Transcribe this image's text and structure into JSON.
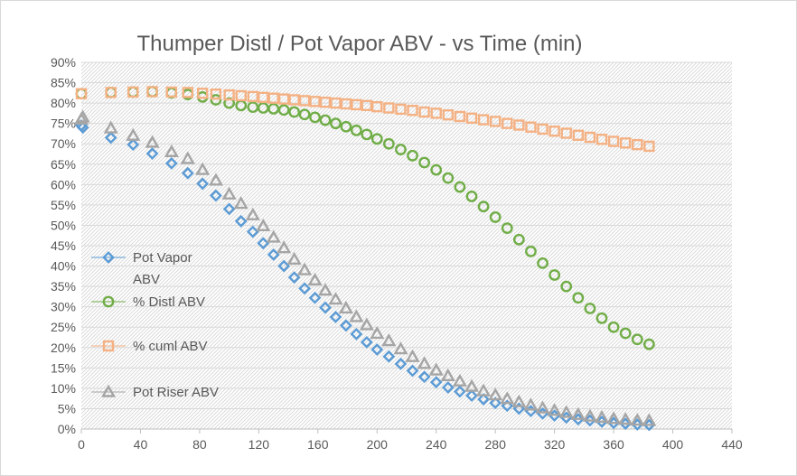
{
  "chart_data": {
    "type": "scatter",
    "title": "Thumper Distl / Pot Vapor ABV - vs Time (min)",
    "xlabel": "",
    "ylabel": "",
    "xlim": [
      0,
      440
    ],
    "ylim": [
      0,
      90
    ],
    "x_ticks": [
      "0",
      "40",
      "80",
      "120",
      "160",
      "200",
      "240",
      "280",
      "320",
      "360",
      "400",
      "440"
    ],
    "y_ticks": [
      "0%",
      "5%",
      "10%",
      "15%",
      "20%",
      "25%",
      "30%",
      "35%",
      "40%",
      "45%",
      "50%",
      "55%",
      "60%",
      "65%",
      "70%",
      "75%",
      "80%",
      "85%",
      "90%"
    ],
    "grid": "horizontal",
    "plot_area_pattern": "diagonal-hatch",
    "legend_position": "left-inside",
    "x": [
      0,
      1,
      20,
      35,
      48,
      61,
      72,
      82,
      91,
      100,
      108,
      116,
      123,
      130,
      137,
      144,
      151,
      158,
      165,
      172,
      179,
      186,
      193,
      200,
      208,
      216,
      224,
      232,
      240,
      248,
      256,
      264,
      272,
      280,
      288,
      296,
      304,
      312,
      320,
      328,
      336,
      344,
      352,
      360,
      368,
      376,
      384
    ],
    "series": [
      {
        "name": "Pot Vapor ABV",
        "color": "#5B9BD5",
        "marker": "diamond",
        "values": [
          74.5,
          74,
          71.5,
          69.8,
          67.6,
          65.2,
          62.8,
          60.2,
          57.3,
          54,
          51,
          48.4,
          45.6,
          42.8,
          40,
          37.2,
          34.5,
          32.2,
          29.8,
          27.5,
          25.4,
          23.3,
          21.3,
          19.5,
          17.8,
          16,
          14.3,
          12.8,
          11.5,
          10.2,
          9.2,
          8.2,
          7.3,
          6.4,
          5.7,
          5,
          4.4,
          3.8,
          3.3,
          2.8,
          2.4,
          2.1,
          1.8,
          1.5,
          1.3,
          1.1,
          1.0
        ]
      },
      {
        "name": "% Distl ABV",
        "color": "#70AD47",
        "marker": "circle",
        "x": [
          0,
          20,
          35,
          48,
          61,
          72,
          82,
          91,
          100,
          108,
          116,
          123,
          130,
          137,
          144,
          151,
          158,
          165,
          172,
          179,
          186,
          193,
          200,
          208,
          216,
          224,
          232,
          240,
          248,
          256,
          264,
          272,
          280,
          288,
          296,
          304,
          312,
          320,
          328,
          336,
          344,
          352,
          360,
          368,
          376,
          384
        ],
        "values": [
          82.3,
          82.6,
          82.7,
          82.8,
          82.5,
          82.1,
          81.5,
          80.8,
          80,
          79.4,
          79,
          78.8,
          78.6,
          78.3,
          77.8,
          77.2,
          76.5,
          75.8,
          75,
          74.2,
          73.3,
          72.3,
          71.2,
          70,
          68.6,
          67.1,
          65.4,
          63.6,
          61.6,
          59.4,
          57.1,
          54.6,
          52,
          49.3,
          46.5,
          43.6,
          40.7,
          37.8,
          35,
          32.2,
          29.6,
          27.2,
          25,
          23.5,
          22,
          20.8
        ]
      },
      {
        "name": "% cuml ABV",
        "color": "#F4B183",
        "marker": "square",
        "x": [
          0,
          20,
          35,
          48,
          61,
          72,
          82,
          91,
          100,
          108,
          116,
          123,
          130,
          137,
          144,
          151,
          158,
          165,
          172,
          179,
          186,
          193,
          200,
          208,
          216,
          224,
          232,
          240,
          248,
          256,
          264,
          272,
          280,
          288,
          296,
          304,
          312,
          320,
          328,
          336,
          344,
          352,
          360,
          368,
          376,
          384
        ],
        "values": [
          82.3,
          82.6,
          82.7,
          82.8,
          82.7,
          82.6,
          82.4,
          82.2,
          82,
          81.8,
          81.6,
          81.4,
          81.2,
          81,
          80.8,
          80.6,
          80.4,
          80.2,
          80,
          79.8,
          79.6,
          79.4,
          79.1,
          78.8,
          78.5,
          78.2,
          77.8,
          77.5,
          77.1,
          76.7,
          76.3,
          75.9,
          75.5,
          75,
          74.6,
          74.1,
          73.6,
          73.1,
          72.6,
          72.1,
          71.6,
          71.1,
          70.6,
          70.2,
          69.8,
          69.4
        ]
      },
      {
        "name": "Pot Riser ABV",
        "color": "#A5A5A5",
        "marker": "triangle",
        "x": [
          0,
          1,
          20,
          35,
          48,
          61,
          72,
          82,
          91,
          100,
          108,
          116,
          123,
          130,
          137,
          144,
          151,
          158,
          165,
          172,
          179,
          186,
          193,
          200,
          208,
          216,
          224,
          232,
          240,
          248,
          256,
          264,
          272,
          280,
          288,
          296,
          304,
          312,
          320,
          328,
          336,
          344,
          352,
          360,
          368,
          376,
          384
        ],
        "values": [
          76,
          76.5,
          73.8,
          72,
          70.3,
          68,
          66.3,
          63.6,
          61,
          57.6,
          55.3,
          52.5,
          49.8,
          47,
          44.4,
          41.6,
          39,
          36.5,
          34,
          31.8,
          29.6,
          27.5,
          25.5,
          23.4,
          21.6,
          19.6,
          17.7,
          16,
          14.4,
          13,
          11.7,
          10.4,
          9.3,
          8.3,
          7.4,
          6.6,
          5.8,
          5.1,
          4.5,
          4,
          3.5,
          3.1,
          2.8,
          2.5,
          2.3,
          2.1,
          2.0
        ]
      }
    ]
  },
  "legend": {
    "items": [
      {
        "line1": "Pot Vapor",
        "line2": "ABV"
      },
      {
        "line1": "% Distl ABV",
        "line2": ""
      },
      {
        "line1": "% cuml ABV",
        "line2": ""
      },
      {
        "line1": "Pot Riser ABV",
        "line2": ""
      }
    ]
  }
}
